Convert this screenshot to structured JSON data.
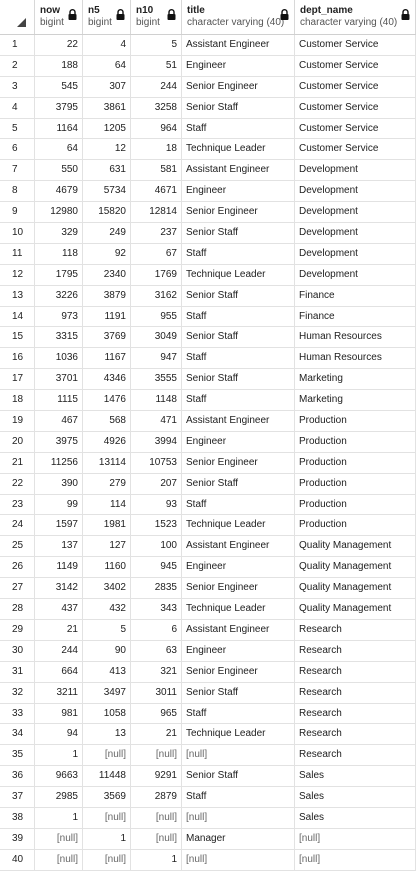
{
  "columns": [
    {
      "name": "now",
      "type": "bigint"
    },
    {
      "name": "n5",
      "type": "bigint"
    },
    {
      "name": "n10",
      "type": "bigint"
    },
    {
      "name": "title",
      "type": "character varying (40)"
    },
    {
      "name": "dept_name",
      "type": "character varying (40)"
    }
  ],
  "rows": [
    [
      "1",
      "22",
      "4",
      "5",
      "Assistant Engineer",
      "Customer Service"
    ],
    [
      "2",
      "188",
      "64",
      "51",
      "Engineer",
      "Customer Service"
    ],
    [
      "3",
      "545",
      "307",
      "244",
      "Senior Engineer",
      "Customer Service"
    ],
    [
      "4",
      "3795",
      "3861",
      "3258",
      "Senior Staff",
      "Customer Service"
    ],
    [
      "5",
      "1164",
      "1205",
      "964",
      "Staff",
      "Customer Service"
    ],
    [
      "6",
      "64",
      "12",
      "18",
      "Technique Leader",
      "Customer Service"
    ],
    [
      "7",
      "550",
      "631",
      "581",
      "Assistant Engineer",
      "Development"
    ],
    [
      "8",
      "4679",
      "5734",
      "4671",
      "Engineer",
      "Development"
    ],
    [
      "9",
      "12980",
      "15820",
      "12814",
      "Senior Engineer",
      "Development"
    ],
    [
      "10",
      "329",
      "249",
      "237",
      "Senior Staff",
      "Development"
    ],
    [
      "11",
      "118",
      "92",
      "67",
      "Staff",
      "Development"
    ],
    [
      "12",
      "1795",
      "2340",
      "1769",
      "Technique Leader",
      "Development"
    ],
    [
      "13",
      "3226",
      "3879",
      "3162",
      "Senior Staff",
      "Finance"
    ],
    [
      "14",
      "973",
      "1191",
      "955",
      "Staff",
      "Finance"
    ],
    [
      "15",
      "3315",
      "3769",
      "3049",
      "Senior Staff",
      "Human Resources"
    ],
    [
      "16",
      "1036",
      "1167",
      "947",
      "Staff",
      "Human Resources"
    ],
    [
      "17",
      "3701",
      "4346",
      "3555",
      "Senior Staff",
      "Marketing"
    ],
    [
      "18",
      "1115",
      "1476",
      "1148",
      "Staff",
      "Marketing"
    ],
    [
      "19",
      "467",
      "568",
      "471",
      "Assistant Engineer",
      "Production"
    ],
    [
      "20",
      "3975",
      "4926",
      "3994",
      "Engineer",
      "Production"
    ],
    [
      "21",
      "11256",
      "13114",
      "10753",
      "Senior Engineer",
      "Production"
    ],
    [
      "22",
      "390",
      "279",
      "207",
      "Senior Staff",
      "Production"
    ],
    [
      "23",
      "99",
      "114",
      "93",
      "Staff",
      "Production"
    ],
    [
      "24",
      "1597",
      "1981",
      "1523",
      "Technique Leader",
      "Production"
    ],
    [
      "25",
      "137",
      "127",
      "100",
      "Assistant Engineer",
      "Quality Management"
    ],
    [
      "26",
      "1149",
      "1160",
      "945",
      "Engineer",
      "Quality Management"
    ],
    [
      "27",
      "3142",
      "3402",
      "2835",
      "Senior Engineer",
      "Quality Management"
    ],
    [
      "28",
      "437",
      "432",
      "343",
      "Technique Leader",
      "Quality Management"
    ],
    [
      "29",
      "21",
      "5",
      "6",
      "Assistant Engineer",
      "Research"
    ],
    [
      "30",
      "244",
      "90",
      "63",
      "Engineer",
      "Research"
    ],
    [
      "31",
      "664",
      "413",
      "321",
      "Senior Engineer",
      "Research"
    ],
    [
      "32",
      "3211",
      "3497",
      "3011",
      "Senior Staff",
      "Research"
    ],
    [
      "33",
      "981",
      "1058",
      "965",
      "Staff",
      "Research"
    ],
    [
      "34",
      "94",
      "13",
      "21",
      "Technique Leader",
      "Research"
    ],
    [
      "35",
      "1",
      "[null]",
      "[null]",
      "[null]",
      "Research"
    ],
    [
      "36",
      "9663",
      "11448",
      "9291",
      "Senior Staff",
      "Sales"
    ],
    [
      "37",
      "2985",
      "3569",
      "2879",
      "Staff",
      "Sales"
    ],
    [
      "38",
      "1",
      "[null]",
      "[null]",
      "[null]",
      "Sales"
    ],
    [
      "39",
      "[null]",
      "1",
      "[null]",
      "Manager",
      "[null]"
    ],
    [
      "40",
      "[null]",
      "[null]",
      "1",
      "[null]",
      "[null]"
    ]
  ]
}
